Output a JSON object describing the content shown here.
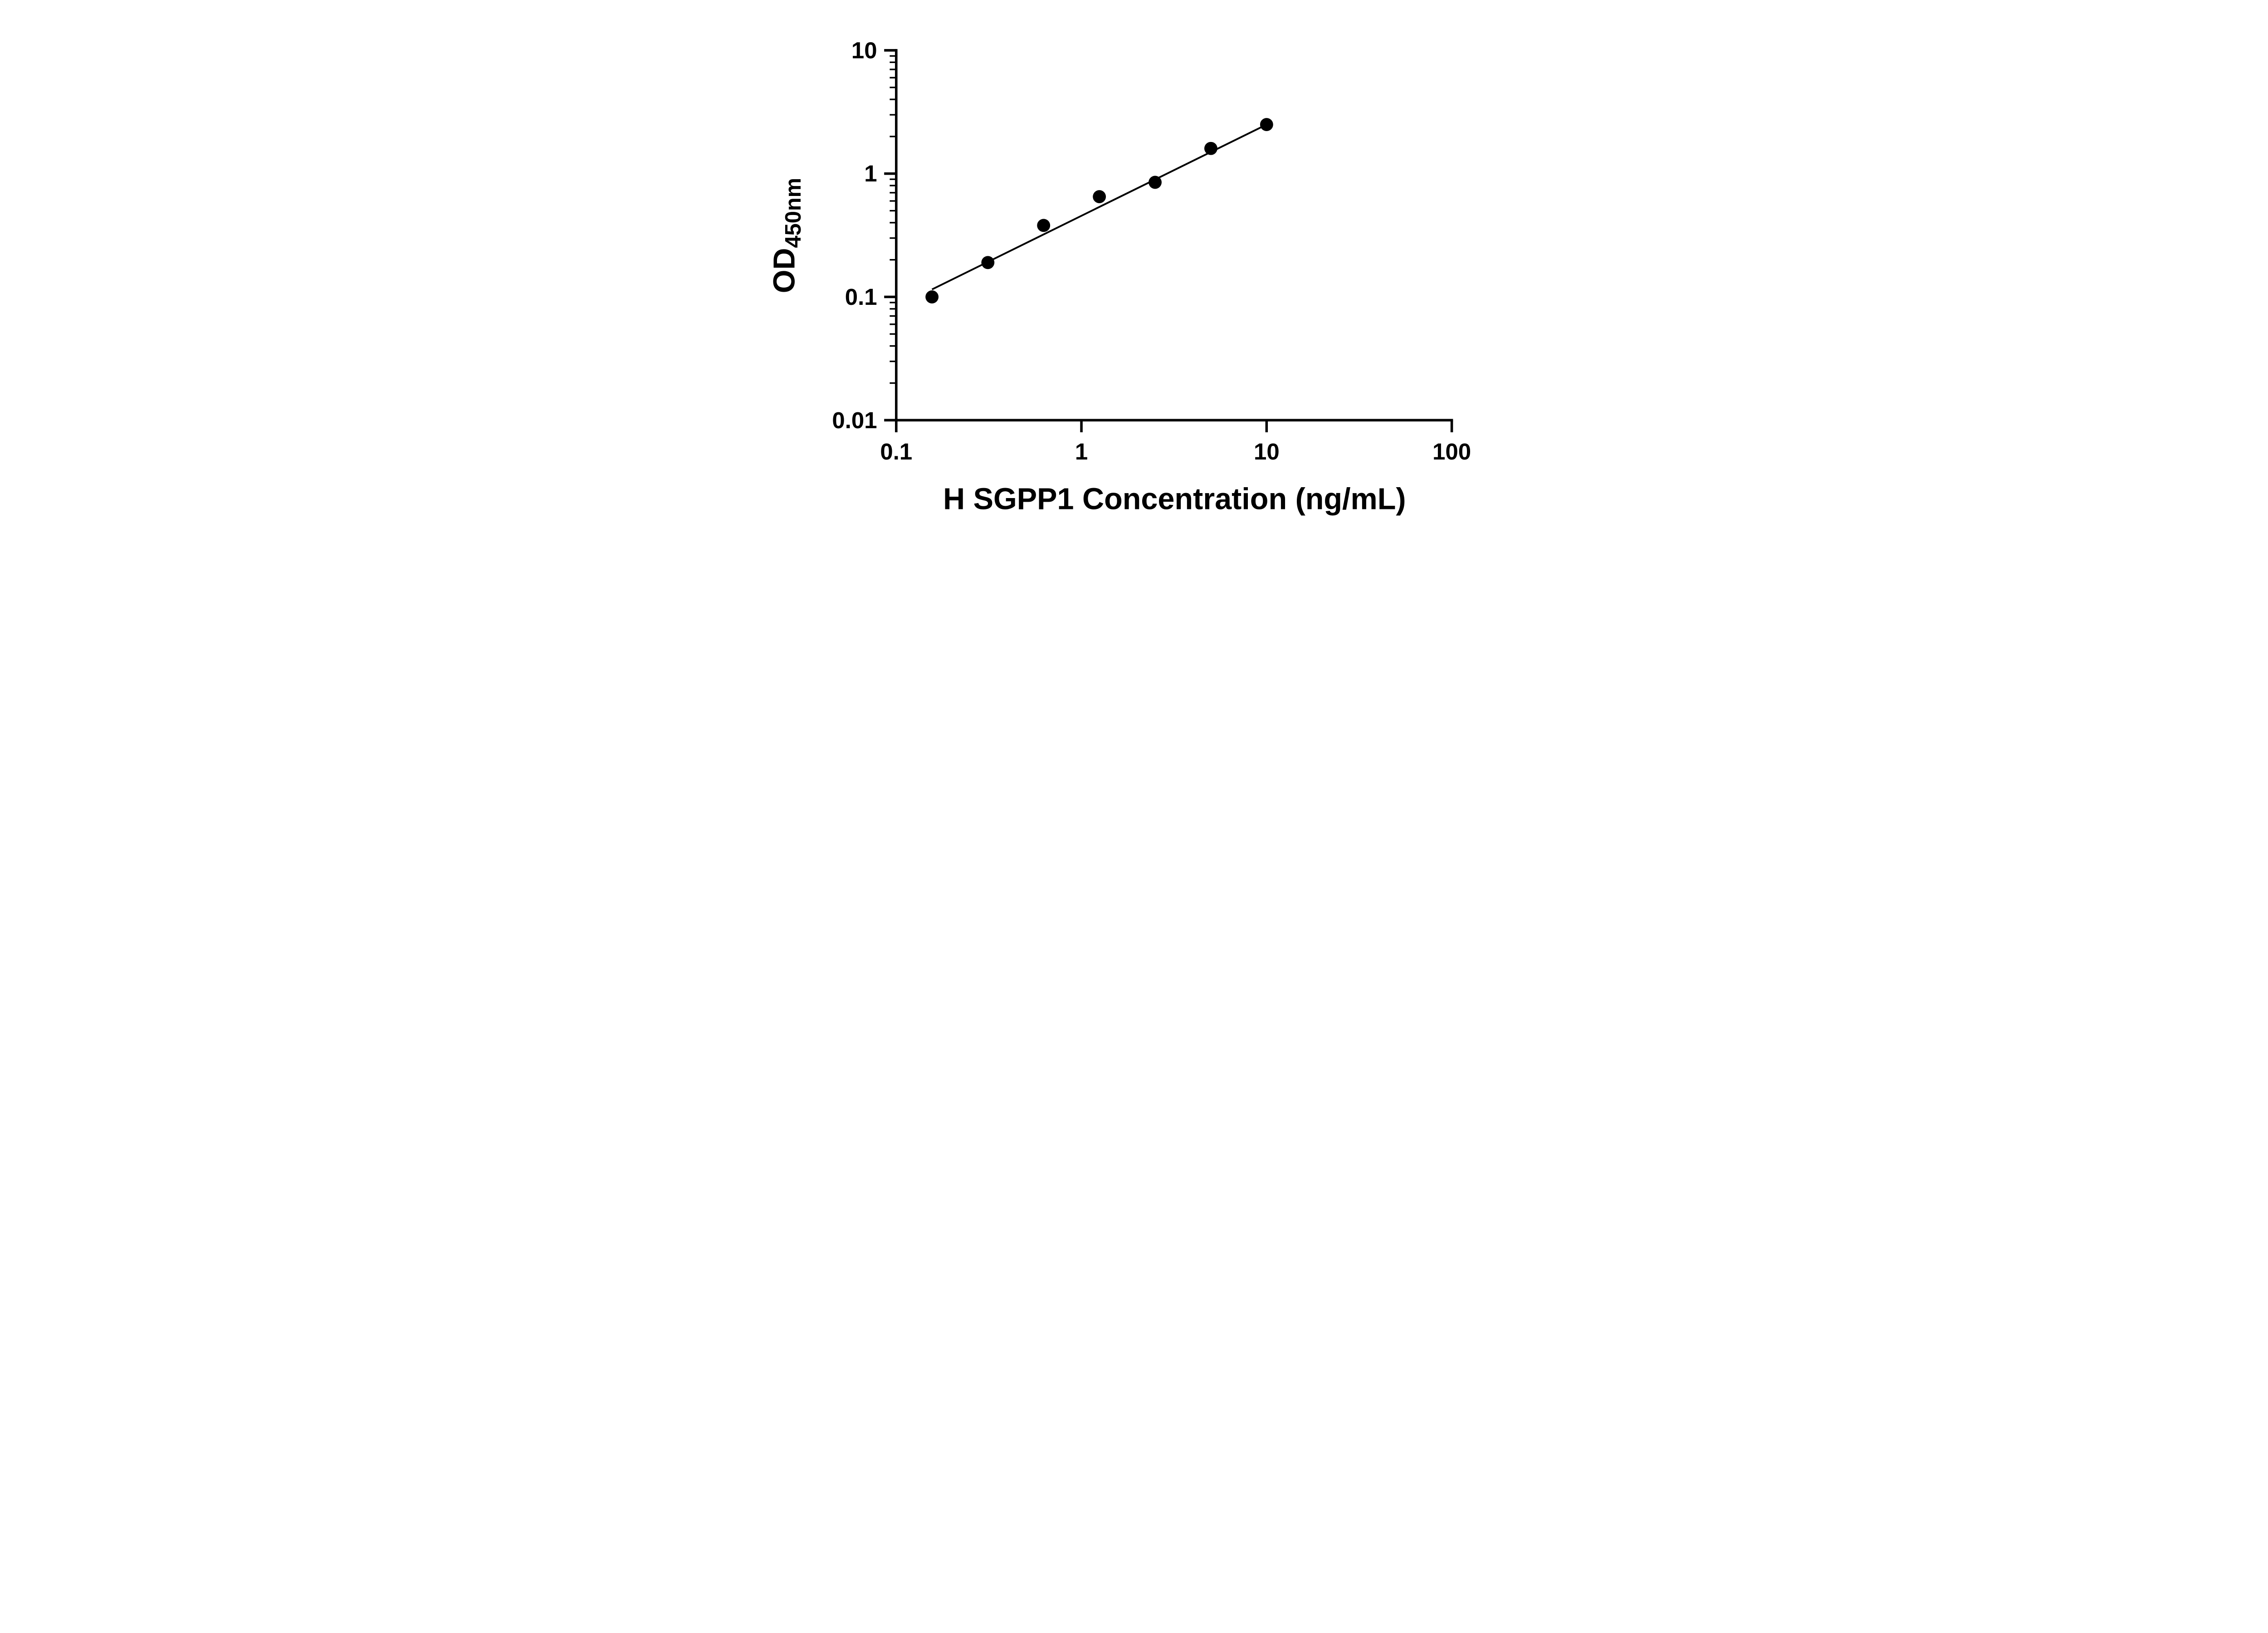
{
  "figure": {
    "background": "#ffffff"
  },
  "chart_data": {
    "type": "scatter",
    "title": "",
    "xlabel": "H SGPP1 Concentration (ng/mL)",
    "ylabel_main": "OD",
    "ylabel_sub": "450nm",
    "x_scale": "log10",
    "y_scale": "log10",
    "xlim": [
      0.1,
      100
    ],
    "ylim": [
      0.01,
      10
    ],
    "grid": false,
    "legend": false,
    "x_ticks": [
      {
        "value": 0.1,
        "label": "0.1"
      },
      {
        "value": 1,
        "label": "1"
      },
      {
        "value": 10,
        "label": "10"
      },
      {
        "value": 100,
        "label": "100"
      }
    ],
    "y_ticks": [
      {
        "value": 0.01,
        "label": "0.01"
      },
      {
        "value": 0.1,
        "label": "0.1"
      },
      {
        "value": 1,
        "label": "1"
      },
      {
        "value": 10,
        "label": "10"
      }
    ],
    "y_minor_ticks": true,
    "x_minor_ticks": false,
    "points": [
      {
        "x": 0.156,
        "y": 0.1
      },
      {
        "x": 0.3125,
        "y": 0.19
      },
      {
        "x": 0.625,
        "y": 0.38
      },
      {
        "x": 1.25,
        "y": 0.65
      },
      {
        "x": 2.5,
        "y": 0.85
      },
      {
        "x": 5.0,
        "y": 1.6
      },
      {
        "x": 10.0,
        "y": 2.5
      }
    ],
    "trend_line": {
      "x1": 0.156,
      "y1": 0.115,
      "x2": 10.0,
      "y2": 2.5
    },
    "marker_color": "#000000",
    "line_color": "#000000",
    "axis_color": "#000000",
    "text_color": "#000000"
  }
}
